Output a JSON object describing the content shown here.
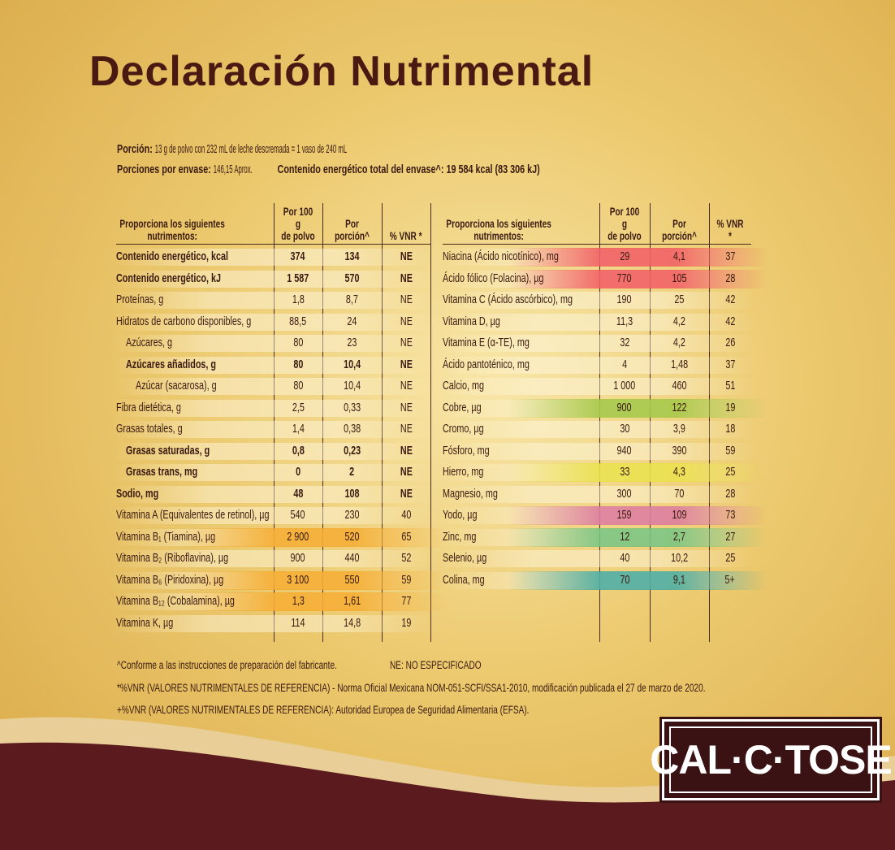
{
  "title": "Declaración Nutrimental",
  "portion": {
    "label1": "Porción:",
    "text1": "13 g de polvo con 232 mL de leche descremada = 1 vaso de 240 mL",
    "label2": "Porciones por envase:",
    "text2": "146,15 Aprox.",
    "label3": "Contenido energético total del envase^:",
    "text3": "19 584 kcal  (83 306 kJ)"
  },
  "tables": [
    {
      "header": [
        "Proporciona los siguientes nutrimentos:",
        "Por 100 g\nde polvo",
        "Por porción^",
        "% VNR *"
      ],
      "rows": [
        {
          "cells": [
            "Contenido energético, kcal",
            "374",
            "134",
            "NE"
          ],
          "style": "bold"
        },
        {
          "cells": [
            "Contenido energético, kJ",
            "1 587",
            "570",
            "NE"
          ],
          "style": "bold"
        },
        {
          "cells": [
            "Proteínas, g",
            "1,8",
            "8,7",
            "NE"
          ],
          "style": "normal"
        },
        {
          "cells": [
            "Hidratos de carbono disponibles, g",
            "88,5",
            "24",
            "NE"
          ],
          "style": "normal"
        },
        {
          "cells": [
            "Azúcares, g",
            "80",
            "23",
            "NE"
          ],
          "style": "sub"
        },
        {
          "cells": [
            "Azúcares añadidos, g",
            "80",
            "10,4",
            "NE"
          ],
          "style": "subbold"
        },
        {
          "cells": [
            "Azúcar (sacarosa), g",
            "80",
            "10,4",
            "NE"
          ],
          "style": "subsub"
        },
        {
          "cells": [
            "Fibra dietética, g",
            "2,5",
            "0,33",
            "NE"
          ],
          "style": "normal"
        },
        {
          "cells": [
            "Grasas totales, g",
            "1,4",
            "0,38",
            "NE"
          ],
          "style": "normal"
        },
        {
          "cells": [
            "Grasas saturadas, g",
            "0,8",
            "0,23",
            "NE"
          ],
          "style": "subbold"
        },
        {
          "cells": [
            "Grasas trans, mg",
            "0",
            "2",
            "NE"
          ],
          "style": "subbold"
        },
        {
          "cells": [
            "Sodio, mg",
            "48",
            "108",
            "NE"
          ],
          "style": "bold"
        },
        {
          "cells": [
            "Vitamina A (Equivalentes de retinol), µg",
            "540",
            "230",
            "40"
          ],
          "style": "normal"
        },
        {
          "cells": [
            "Vitamina B₁ (Tiamina), µg",
            "2 900",
            "520",
            "65"
          ],
          "style": "normal",
          "highlight": "#f5a623"
        },
        {
          "cells": [
            "Vitamina B₂ (Riboflavina), µg",
            "900",
            "440",
            "52"
          ],
          "style": "normal"
        },
        {
          "cells": [
            "Vitamina B₆ (Piridoxina), µg",
            "3 100",
            "550",
            "59"
          ],
          "style": "normal",
          "highlight": "#f5a623"
        },
        {
          "cells": [
            "Vitamina B₁₂ (Cobalamina), µg",
            "1,3",
            "1,61",
            "77"
          ],
          "style": "normal",
          "highlight": "#f5a623"
        },
        {
          "cells": [
            "Vitamina K, µg",
            "114",
            "14,8",
            "19"
          ],
          "style": "normal"
        }
      ]
    },
    {
      "header": [
        "Proporciona los siguientes nutrimentos:",
        "Por 100 g\nde polvo",
        "Por porción^",
        "% VNR *"
      ],
      "rows": [
        {
          "cells": [
            "Niacina (Ácido nicotínico), mg",
            "29",
            "4,1",
            "37"
          ],
          "style": "normal",
          "highlight": "#f0505a"
        },
        {
          "cells": [
            "Ácido fólico (Folacina), µg",
            "770",
            "105",
            "28"
          ],
          "style": "normal",
          "highlight": "#f0505a"
        },
        {
          "cells": [
            "Vitamina C (Ácido ascórbico), mg",
            "190",
            "25",
            "42"
          ],
          "style": "normal"
        },
        {
          "cells": [
            "Vitamina D, µg",
            "11,3",
            "4,2",
            "42"
          ],
          "style": "normal"
        },
        {
          "cells": [
            "Vitamina E (α-TE), mg",
            "32",
            "4,2",
            "26"
          ],
          "style": "normal"
        },
        {
          "cells": [
            "Ácido pantoténico, mg",
            "4",
            "1,48",
            "37"
          ],
          "style": "normal"
        },
        {
          "cells": [
            "Calcio, mg",
            "1 000",
            "460",
            "51"
          ],
          "style": "normal"
        },
        {
          "cells": [
            "Cobre, µg",
            "900",
            "122",
            "19"
          ],
          "style": "normal",
          "highlight": "#9cc43a"
        },
        {
          "cells": [
            "Cromo, µg",
            "30",
            "3,9",
            "18"
          ],
          "style": "normal"
        },
        {
          "cells": [
            "Fósforo, mg",
            "940",
            "390",
            "59"
          ],
          "style": "normal"
        },
        {
          "cells": [
            "Hierro, mg",
            "33",
            "4,3",
            "25"
          ],
          "style": "normal",
          "highlight": "#e8e040"
        },
        {
          "cells": [
            "Magnesio, mg",
            "300",
            "70",
            "28"
          ],
          "style": "normal"
        },
        {
          "cells": [
            "Yodo, µg",
            "159",
            "109",
            "73"
          ],
          "style": "normal",
          "highlight": "#d9709a"
        },
        {
          "cells": [
            "Zinc, mg",
            "12",
            "2,7",
            "27"
          ],
          "style": "normal",
          "highlight": "#6cc07a"
        },
        {
          "cells": [
            "Selenio, µg",
            "40",
            "10,2",
            "25"
          ],
          "style": "normal"
        },
        {
          "cells": [
            "Colina, mg",
            "70",
            "9,1",
            "5+"
          ],
          "style": "normal",
          "highlight": "#3aa6a0"
        }
      ]
    }
  ],
  "footnotes": [
    "^Conforme a las instrucciones de preparación del fabricante.",
    "NE: NO ESPECIFICADO",
    "*%VNR (VALORES NUTRIMENTALES DE REFERENCIA) - Norma Oficial Mexicana NOM-051-SCFI/SSA1-2010, modificación publicada el 27 de marzo de 2020.",
    "+%VNR (VALORES NUTRIMENTALES DE REFERENCIA): Autoridad Europea de Seguridad Alimentaria (EFSA)."
  ],
  "logo": "CAL·C·TOSE"
}
